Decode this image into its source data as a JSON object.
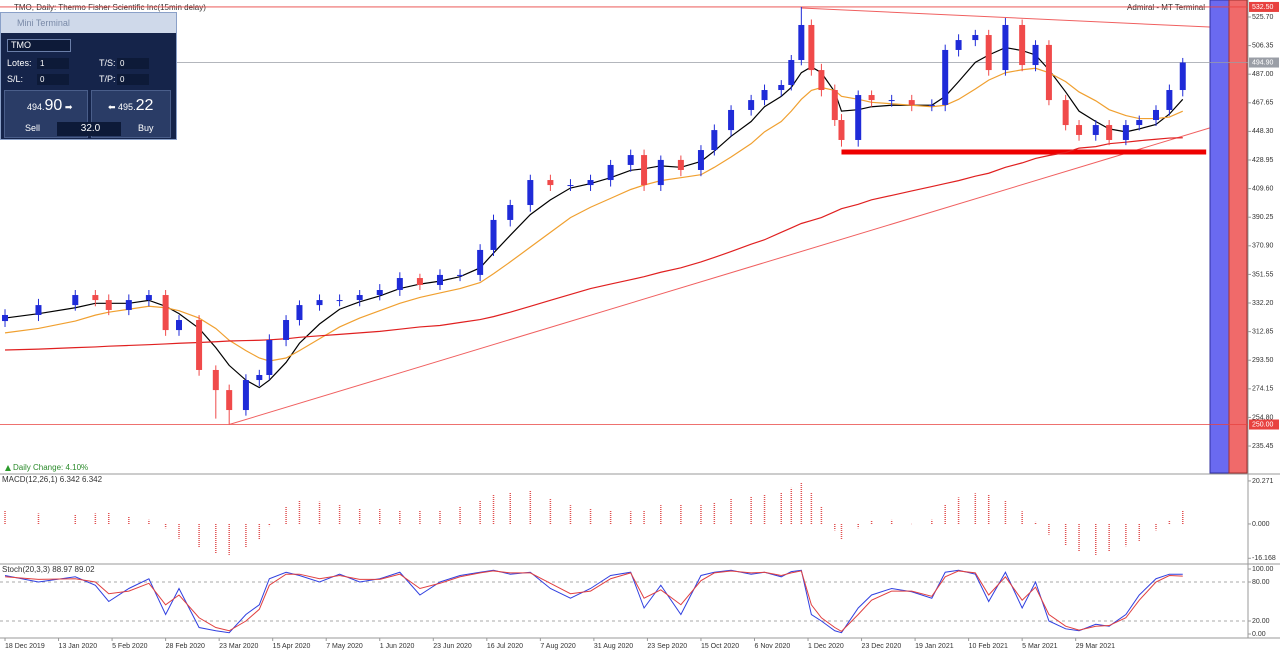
{
  "header": {
    "title": "TMO, Daily:  Thermo Fisher Scientific Inc(15min delay)",
    "platform": "Admiral - MT Terminal",
    "daily_change": "Daily Change: 4.10%"
  },
  "mini_terminal": {
    "title": "Mini Terminal",
    "symbol": "TMO",
    "lots_label": "Lotes:",
    "lots": 1,
    "ts_label": "T/S:",
    "ts": 0,
    "sl_label": "S/L:",
    "sl": 0,
    "tp_label": "T/P:",
    "tp": 0,
    "sell_main": "494.",
    "sell_pips": "90",
    "buy_main": "495.",
    "buy_pips": "22",
    "sell": "Sell",
    "spread": "32.0",
    "buy": "Buy"
  },
  "chart_data": [
    {
      "type": "candlestick",
      "xlim": [
        -1.5,
        371.5
      ],
      "ylim": [
        217.2,
        537.2
      ],
      "yticks": [
        {
          "value": 525.7,
          "label": "525.70"
        },
        506.35,
        {
          "value": 487,
          "label": "487.00"
        },
        467.65,
        {
          "value": 448.3,
          "label": "448.30"
        },
        428.95,
        {
          "value": 409.6,
          "label": "409.60"
        },
        390.25,
        {
          "value": 370.9,
          "label": "370.90"
        },
        351.55,
        {
          "value": 332.2,
          "label": "332.20"
        },
        312.85,
        {
          "value": 293.5,
          "label": "293.50"
        },
        274.15,
        {
          "value": 254.8,
          "label": "254.80"
        },
        235.45
      ],
      "up_color": "#1f2bd8",
      "down_color": "#f04a4a",
      "x": [
        0,
        10,
        21,
        27,
        31,
        37,
        43,
        48,
        52,
        58,
        63,
        67,
        72,
        76,
        79,
        84,
        88,
        94,
        100,
        106,
        112,
        118,
        124,
        130,
        136,
        142,
        146,
        151,
        157,
        163,
        169,
        175,
        181,
        187,
        191,
        196,
        202,
        208,
        212,
        217,
        223,
        227,
        232,
        235,
        238,
        241,
        244,
        248,
        250,
        255,
        259,
        265,
        271,
        277,
        281,
        285,
        290,
        294,
        299,
        304,
        308,
        312,
        317,
        321,
        326,
        330,
        335,
        339,
        344,
        348,
        352
      ],
      "open": [
        320.0,
        324.1,
        330.8,
        337.6,
        334.2,
        327.5,
        334.2,
        337.6,
        313.9,
        320.7,
        286.9,
        273.3,
        259.8,
        280.1,
        283.5,
        307.2,
        320.7,
        330.8,
        334.2,
        334.2,
        337.6,
        341.0,
        349.1,
        344.4,
        351.2,
        351.2,
        368.1,
        388.4,
        398.5,
        415.4,
        412.0,
        412.0,
        415.4,
        425.6,
        432.3,
        412.0,
        429.0,
        422.2,
        435.7,
        449.2,
        462.8,
        469.5,
        476.3,
        479.7,
        496.6,
        520.3,
        489.8,
        476.3,
        456.0,
        442.5,
        472.9,
        469.5,
        469.5,
        466.2,
        466.2,
        503.4,
        510.1,
        513.5,
        489.8,
        520.3,
        493.2,
        506.8,
        469.5,
        452.6,
        445.9,
        452.6,
        442.5,
        452.6,
        456.0,
        462.8,
        476.3
      ],
      "high": [
        328,
        335,
        341,
        341,
        338,
        338,
        341,
        341,
        324,
        324,
        290,
        277,
        284,
        287,
        311,
        324,
        334,
        338,
        338,
        341,
        345,
        353,
        352,
        355,
        355,
        372,
        392,
        402,
        419,
        419,
        416,
        419,
        429,
        436,
        436,
        432,
        432,
        439,
        453,
        466,
        473,
        480,
        483,
        500,
        532.5,
        524,
        494,
        480,
        460,
        476,
        476,
        473,
        473,
        470,
        507,
        514,
        517,
        517,
        525,
        524,
        510,
        510,
        473,
        456,
        456,
        456,
        456,
        459,
        466,
        480,
        498
      ],
      "low": [
        316,
        320,
        327,
        330,
        324,
        324,
        330,
        310,
        310,
        283,
        254,
        250,
        256,
        276,
        280,
        303,
        317,
        327,
        330,
        330,
        334,
        337,
        341,
        341,
        347,
        347,
        364,
        384,
        394,
        408,
        408,
        408,
        411,
        421,
        408,
        408,
        418,
        418,
        432,
        445,
        459,
        466,
        472,
        476,
        493,
        486,
        472,
        452,
        438,
        438,
        465,
        465,
        462,
        462,
        462,
        499,
        506,
        486,
        486,
        489,
        489,
        466,
        449,
        442,
        442,
        439,
        439,
        449,
        452,
        459,
        472
      ],
      "close": [
        324.1,
        330.8,
        337.6,
        334.2,
        327.5,
        334.2,
        337.6,
        313.9,
        320.7,
        286.9,
        273.3,
        259.8,
        280.1,
        283.5,
        307.2,
        320.7,
        330.8,
        334.2,
        334.2,
        337.6,
        341.0,
        349.1,
        344.4,
        351.2,
        351.2,
        368.1,
        388.4,
        398.5,
        415.4,
        412.0,
        412.0,
        415.4,
        425.6,
        432.3,
        412.0,
        429.0,
        422.2,
        435.7,
        449.2,
        462.8,
        469.5,
        476.3,
        479.7,
        496.6,
        520.3,
        489.8,
        476.3,
        456.0,
        442.5,
        472.9,
        469.5,
        469.5,
        466.2,
        466.2,
        503.4,
        510.1,
        513.5,
        489.8,
        520.3,
        493.2,
        506.8,
        469.5,
        452.6,
        445.9,
        452.6,
        442.5,
        452.6,
        456.0,
        462.8,
        476.3,
        494.9
      ],
      "overlays": [
        {
          "color": "#000000",
          "values": [
            322,
            325,
            329,
            332,
            332,
            332,
            334,
            330,
            325,
            315,
            302,
            290,
            280,
            275,
            280,
            292,
            305,
            318,
            328,
            333,
            337,
            342,
            345,
            347,
            350,
            356,
            366,
            378,
            392,
            402,
            410,
            413,
            417,
            422,
            423,
            425,
            424,
            428,
            435,
            445,
            455,
            465,
            472,
            478,
            488,
            492,
            488,
            475,
            462,
            463,
            465,
            466,
            466,
            466,
            472,
            482,
            495,
            500,
            505,
            503,
            500,
            490,
            475,
            462,
            455,
            450,
            448,
            450,
            453,
            460,
            470
          ]
        },
        {
          "color": "#f0a030",
          "values": [
            312,
            315,
            320,
            324,
            326,
            328,
            330,
            329,
            327,
            322,
            315,
            307,
            300,
            295,
            293,
            295,
            300,
            308,
            316,
            322,
            327,
            332,
            336,
            339,
            342,
            346,
            352,
            360,
            370,
            380,
            390,
            397,
            403,
            409,
            412,
            415,
            417,
            419,
            424,
            431,
            440,
            448,
            455,
            462,
            470,
            476,
            478,
            476,
            472,
            470,
            468,
            467,
            466,
            465,
            466,
            470,
            477,
            483,
            488,
            490,
            491,
            488,
            482,
            475,
            469,
            463,
            459,
            457,
            457,
            458,
            462
          ]
        },
        {
          "color": "#e02020",
          "values": [
            300.4,
            301,
            302,
            302.5,
            303,
            303.5,
            304,
            304.5,
            305,
            305.5,
            306,
            306.5,
            306.8,
            307,
            307.3,
            308,
            309,
            310,
            311,
            312,
            313,
            314.5,
            316,
            317,
            319,
            321,
            323,
            326,
            330,
            334,
            338,
            342,
            345,
            348,
            350,
            353,
            356,
            360,
            363,
            367,
            372,
            375,
            380,
            383,
            386,
            388,
            390,
            394,
            396,
            399,
            402,
            405,
            408,
            411,
            413,
            415,
            418,
            420,
            424,
            427,
            430,
            432,
            434,
            437,
            438,
            440,
            441,
            442,
            443,
            443.8,
            444
          ]
        }
      ],
      "trendlines": [
        {
          "color": "#f06060",
          "x": [
            67,
            360
          ],
          "values": [
            250,
            450.6
          ]
        },
        {
          "color": "#f06060",
          "x": [
            238,
            360
          ],
          "values": [
            531.8,
            518.9
          ]
        }
      ],
      "support_line": {
        "color": "#ee0000",
        "x": [
          250,
          359
        ],
        "values": [
          434.4,
          434.4
        ]
      },
      "horizontal_lines": [
        {
          "value": 532.5,
          "label": "532.50",
          "color": "#e8423f"
        },
        {
          "value": 494.9,
          "label": "494.90",
          "color": "#9a9ea6"
        },
        {
          "value": 250,
          "label": "250.00",
          "color": "#e8423f"
        }
      ]
    },
    {
      "type": "bar",
      "title": "MACD(12,26,1) 6.342 6.342",
      "color": "#e05050",
      "xlim": [
        -1.5,
        371.5
      ],
      "ylim": [
        -18.4,
        22.6
      ],
      "yticks": [
        20.271,
        {
          "value": 0,
          "label": "0.000"
        },
        -16.168
      ],
      "x": [
        0,
        10,
        21,
        27,
        31,
        37,
        43,
        48,
        52,
        58,
        63,
        67,
        72,
        76,
        79,
        84,
        88,
        94,
        100,
        106,
        112,
        118,
        124,
        130,
        136,
        142,
        146,
        151,
        157,
        163,
        169,
        175,
        181,
        187,
        191,
        196,
        202,
        208,
        212,
        217,
        223,
        227,
        232,
        235,
        238,
        241,
        244,
        248,
        250,
        255,
        259,
        265,
        271,
        277,
        281,
        285,
        290,
        294,
        299,
        304,
        308,
        312,
        317,
        321,
        326,
        330,
        335,
        339,
        344,
        348,
        352
      ],
      "values": [
        6.6,
        5,
        4.5,
        5,
        5.5,
        3.5,
        2,
        -2,
        -7,
        -11,
        -14,
        -14.6,
        -11,
        -7.5,
        -1,
        8,
        11.3,
        10.5,
        8.9,
        7.5,
        7,
        6.6,
        6.6,
        6.6,
        8,
        11,
        13.7,
        15,
        16,
        12,
        8.9,
        7.5,
        6.6,
        6,
        6.5,
        8.9,
        9,
        8.9,
        10,
        12,
        13,
        13.7,
        15,
        17,
        19.3,
        15,
        8,
        -3,
        -7.5,
        -2,
        1.5,
        1.9,
        0,
        2,
        9,
        12.5,
        14.5,
        14,
        11,
        6,
        1,
        -5,
        -10,
        -13,
        -14.6,
        -13,
        -10.5,
        -8,
        -3,
        1.5,
        6.6
      ]
    },
    {
      "type": "line",
      "title": "Stoch(20,3,3) 88.97 89.02",
      "xlim": [
        -1.5,
        371.5
      ],
      "ylim": [
        -4.6,
        104.6
      ],
      "yticks": [
        {
          "value": 100,
          "label": "100.00"
        },
        {
          "value": 80,
          "label": "80.00"
        },
        {
          "value": 20,
          "label": "20.00"
        },
        {
          "value": 0,
          "label": "0.00"
        }
      ],
      "levels": [
        80,
        20
      ],
      "xticks": [
        {
          "value": 0,
          "label": "18 Dec 2019"
        },
        {
          "value": 16,
          "label": "13 Jan 2020"
        },
        {
          "value": 32,
          "label": "5 Feb 2020"
        },
        {
          "value": 48,
          "label": "28 Feb 2020"
        },
        {
          "value": 64,
          "label": "23 Mar 2020"
        },
        {
          "value": 80,
          "label": "15 Apr 2020"
        },
        {
          "value": 96,
          "label": "7 May 2020"
        },
        {
          "value": 112,
          "label": "1 Jun 2020"
        },
        {
          "value": 128,
          "label": "23 Jun 2020"
        },
        {
          "value": 144,
          "label": "16 Jul 2020"
        },
        {
          "value": 160,
          "label": "7 Aug 2020"
        },
        {
          "value": 176,
          "label": "31 Aug 2020"
        },
        {
          "value": 192,
          "label": "23 Sep 2020"
        },
        {
          "value": 208,
          "label": "15 Oct 2020"
        },
        {
          "value": 224,
          "label": "6 Nov 2020"
        },
        {
          "value": 240,
          "label": "1 Dec 2020"
        },
        {
          "value": 256,
          "label": "23 Dec 2020"
        },
        {
          "value": 272,
          "label": "19 Jan 2021"
        },
        {
          "value": 288,
          "label": "10 Feb 2021"
        },
        {
          "value": 304,
          "label": "5 Mar 2021"
        },
        {
          "value": 320,
          "label": "29 Mar 2021"
        }
      ],
      "x": [
        0,
        10,
        21,
        27,
        31,
        37,
        43,
        48,
        52,
        58,
        63,
        67,
        72,
        76,
        79,
        84,
        88,
        94,
        100,
        106,
        112,
        118,
        124,
        130,
        136,
        142,
        146,
        151,
        157,
        163,
        169,
        175,
        181,
        187,
        191,
        196,
        202,
        208,
        212,
        217,
        223,
        227,
        232,
        235,
        238,
        241,
        244,
        248,
        250,
        255,
        259,
        265,
        271,
        277,
        281,
        285,
        290,
        294,
        299,
        304,
        308,
        312,
        317,
        321,
        326,
        330,
        335,
        339,
        344,
        348,
        352
      ],
      "series": [
        {
          "color": "#3040e0",
          "values": [
            90,
            80,
            88,
            75,
            50,
            70,
            85,
            30,
            70,
            10,
            5,
            2,
            30,
            45,
            85,
            95,
            90,
            80,
            92,
            80,
            85,
            95,
            60,
            80,
            90,
            95,
            98,
            92,
            95,
            70,
            55,
            70,
            90,
            95,
            40,
            75,
            30,
            90,
            95,
            98,
            92,
            95,
            88,
            96,
            98,
            30,
            20,
            5,
            2,
            40,
            60,
            70,
            65,
            55,
            95,
            98,
            92,
            50,
            95,
            40,
            80,
            20,
            8,
            5,
            15,
            12,
            30,
            60,
            85,
            92,
            92
          ]
        },
        {
          "color": "#e04040",
          "values": [
            88,
            84,
            85,
            80,
            62,
            66,
            78,
            45,
            60,
            25,
            10,
            5,
            20,
            38,
            75,
            92,
            92,
            85,
            90,
            84,
            84,
            92,
            70,
            78,
            88,
            94,
            97,
            94,
            94,
            78,
            62,
            66,
            85,
            94,
            55,
            68,
            45,
            82,
            94,
            97,
            94,
            95,
            90,
            94,
            97,
            45,
            25,
            10,
            4,
            30,
            52,
            66,
            66,
            58,
            88,
            97,
            94,
            60,
            88,
            52,
            72,
            30,
            12,
            6,
            12,
            13,
            25,
            52,
            80,
            90,
            89
          ]
        }
      ]
    }
  ]
}
